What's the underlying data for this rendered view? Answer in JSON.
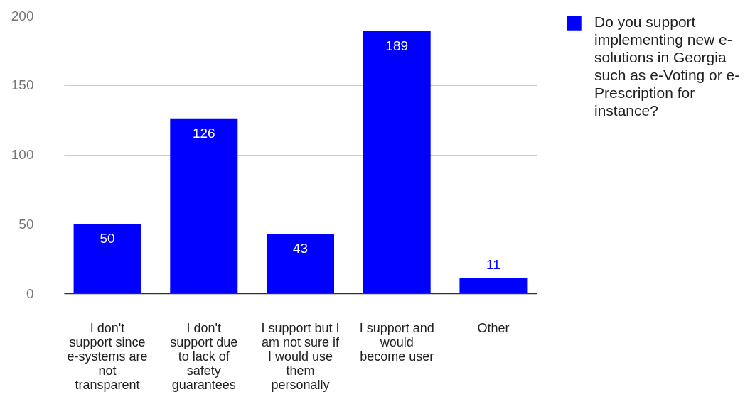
{
  "chart_data": {
    "type": "bar",
    "categories": [
      "I don't support since e-systems are not transparent",
      "I don't support due to lack of safety guarantees",
      "I support but I am not sure if I would use them personally",
      "I support and would become user",
      "Other"
    ],
    "series": [
      {
        "name": "Do you support implementing new e-solutions in Georgia such as e-Voting or e-Prescription for instance?",
        "color": "#0000ff",
        "values": [
          50,
          126,
          43,
          189,
          11
        ]
      }
    ],
    "ylim": [
      0,
      200
    ],
    "yticks": [
      0,
      50,
      100,
      150,
      200
    ],
    "grid": "y",
    "legend": "right",
    "data_labels": true
  }
}
